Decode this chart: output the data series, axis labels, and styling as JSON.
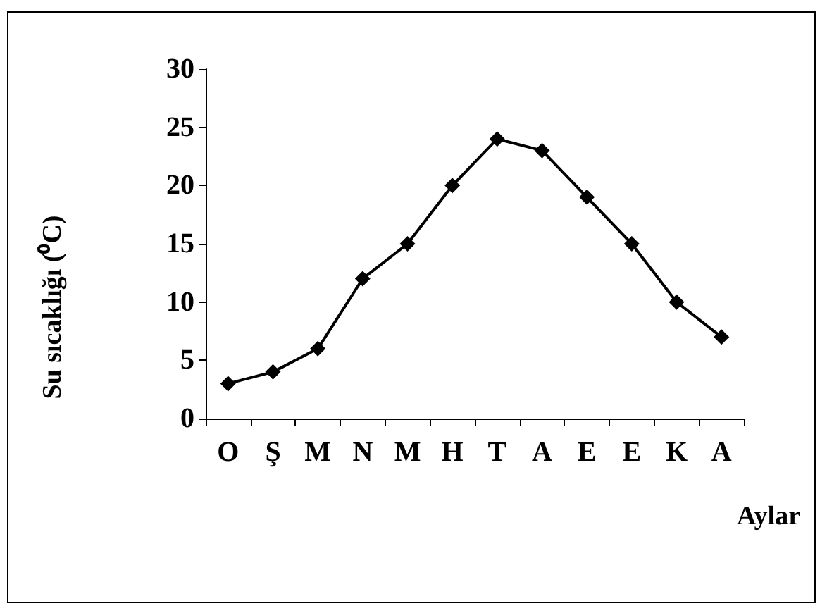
{
  "chart_data": {
    "type": "line",
    "ylabel": "Su sıcaklığı (⁰C)",
    "xlabel": "Aylar",
    "categories": [
      "O",
      "Ş",
      "M",
      "N",
      "M",
      "H",
      "T",
      "A",
      "E",
      "E",
      "K",
      "A"
    ],
    "series": [
      {
        "color": "#000000",
        "values": [
          3,
          4,
          6,
          12,
          15,
          20,
          24,
          23,
          19,
          15,
          10,
          7
        ]
      }
    ],
    "ylim": [
      0,
      30
    ],
    "yticks": [
      0,
      5,
      10,
      15,
      20,
      25,
      30
    ],
    "marker": "diamond",
    "line_style": "solid"
  }
}
